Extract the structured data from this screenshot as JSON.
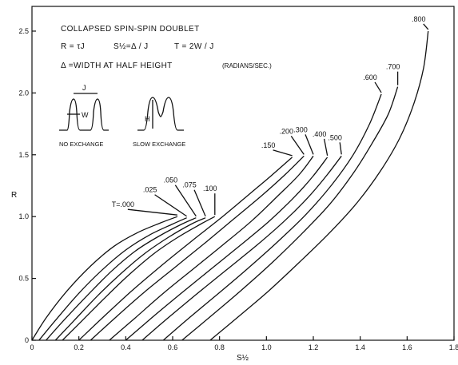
{
  "chart_data": {
    "type": "line",
    "title": "COLLAPSED SPIN-SPIN DOUBLET",
    "definitions": [
      "R = τJ",
      "S½=Δ / J",
      "T = 2W / J"
    ],
    "delta_note": "Δ =WIDTH AT HALF HEIGHT",
    "delta_units": "(RADIANS/SEC.)",
    "xlabel": "S½",
    "ylabel": "R",
    "xlim": [
      0,
      1.8
    ],
    "ylim": [
      0,
      2.7
    ],
    "xticks": [
      "0",
      "0.2",
      "0.4",
      "0.6",
      "0.8",
      "1.0",
      "1.2",
      "1.4",
      "1.6",
      "1.8"
    ],
    "yticks": [
      "0",
      "0.5",
      "1.0",
      "1.5",
      "2.0",
      "2.5"
    ],
    "inset": {
      "no_exchange_label": "NO EXCHANGE",
      "slow_exchange_label": "SLOW EXCHANGE",
      "j_label": "J",
      "w_label": "W",
      "h_label": "H"
    },
    "series": [
      {
        "name": "T=.000",
        "x": [
          0.0,
          0.06,
          0.15,
          0.25,
          0.35,
          0.45,
          0.55,
          0.62
        ],
        "y": [
          0.0,
          0.18,
          0.4,
          0.6,
          0.76,
          0.87,
          0.95,
          1.0
        ]
      },
      {
        "name": ".025",
        "x": [
          0.03,
          0.1,
          0.2,
          0.3,
          0.4,
          0.5,
          0.6,
          0.66
        ],
        "y": [
          0.0,
          0.16,
          0.38,
          0.57,
          0.73,
          0.85,
          0.94,
          0.99
        ]
      },
      {
        "name": ".050",
        "x": [
          0.06,
          0.14,
          0.24,
          0.34,
          0.44,
          0.54,
          0.64,
          0.7
        ],
        "y": [
          0.0,
          0.17,
          0.37,
          0.56,
          0.72,
          0.84,
          0.94,
          0.99
        ]
      },
      {
        "name": ".075",
        "x": [
          0.1,
          0.18,
          0.28,
          0.38,
          0.48,
          0.58,
          0.68,
          0.74
        ],
        "y": [
          0.0,
          0.16,
          0.36,
          0.54,
          0.7,
          0.83,
          0.94,
          0.99
        ]
      },
      {
        "name": ".100",
        "x": [
          0.13,
          0.22,
          0.32,
          0.42,
          0.52,
          0.62,
          0.72,
          0.78
        ],
        "y": [
          0.0,
          0.17,
          0.36,
          0.54,
          0.7,
          0.83,
          0.94,
          1.0
        ]
      },
      {
        "name": ".150",
        "x": [
          0.2,
          0.3,
          0.42,
          0.55,
          0.68,
          0.8,
          0.92,
          1.02,
          1.11
        ],
        "y": [
          0.0,
          0.18,
          0.39,
          0.6,
          0.8,
          0.98,
          1.17,
          1.33,
          1.48
        ]
      },
      {
        "name": ".200",
        "x": [
          0.25,
          0.36,
          0.48,
          0.61,
          0.74,
          0.86,
          0.98,
          1.08,
          1.16
        ],
        "y": [
          0.0,
          0.19,
          0.39,
          0.59,
          0.79,
          0.98,
          1.17,
          1.34,
          1.49
        ]
      },
      {
        "name": ".300",
        "x": [
          0.33,
          0.44,
          0.56,
          0.69,
          0.82,
          0.94,
          1.05,
          1.14,
          1.2
        ],
        "y": [
          0.0,
          0.18,
          0.38,
          0.58,
          0.78,
          0.97,
          1.17,
          1.34,
          1.49
        ]
      },
      {
        "name": ".400",
        "x": [
          0.4,
          0.51,
          0.63,
          0.76,
          0.89,
          1.01,
          1.12,
          1.2,
          1.26
        ],
        "y": [
          0.0,
          0.18,
          0.37,
          0.57,
          0.77,
          0.96,
          1.16,
          1.33,
          1.48
        ]
      },
      {
        "name": ".500",
        "x": [
          0.47,
          0.58,
          0.7,
          0.83,
          0.96,
          1.08,
          1.18,
          1.26,
          1.32
        ],
        "y": [
          0.0,
          0.18,
          0.37,
          0.57,
          0.77,
          0.97,
          1.16,
          1.34,
          1.49
        ]
      },
      {
        "name": ".600",
        "x": [
          0.56,
          0.67,
          0.79,
          0.92,
          1.05,
          1.17,
          1.28,
          1.37,
          1.44,
          1.49
        ],
        "y": [
          0.0,
          0.18,
          0.37,
          0.58,
          0.8,
          1.02,
          1.26,
          1.5,
          1.75,
          1.99
        ]
      },
      {
        "name": ".700",
        "x": [
          0.64,
          0.76,
          0.89,
          1.02,
          1.15,
          1.27,
          1.37,
          1.45,
          1.52,
          1.56
        ],
        "y": [
          0.0,
          0.19,
          0.4,
          0.62,
          0.86,
          1.1,
          1.35,
          1.59,
          1.83,
          2.05
        ]
      },
      {
        "name": ".800",
        "x": [
          0.76,
          0.88,
          1.01,
          1.14,
          1.27,
          1.39,
          1.49,
          1.57,
          1.63,
          1.67,
          1.69
        ],
        "y": [
          0.0,
          0.19,
          0.4,
          0.63,
          0.87,
          1.12,
          1.38,
          1.64,
          1.92,
          2.2,
          2.5
        ]
      }
    ],
    "curve_labels": [
      {
        "text": "T=.000",
        "series": 0
      },
      {
        "text": ".025",
        "series": 1
      },
      {
        "text": ".050",
        "series": 2
      },
      {
        "text": ".075",
        "series": 3
      },
      {
        "text": ".100",
        "series": 4
      },
      {
        "text": ".150",
        "series": 5
      },
      {
        "text": ".200",
        "series": 6
      },
      {
        "text": ".300",
        "series": 7
      },
      {
        "text": ".400",
        "series": 8
      },
      {
        "text": ".500",
        "series": 9
      },
      {
        "text": ".600",
        "series": 10
      },
      {
        "text": ".700",
        "series": 11
      },
      {
        "text": ".800",
        "series": 12
      }
    ]
  }
}
